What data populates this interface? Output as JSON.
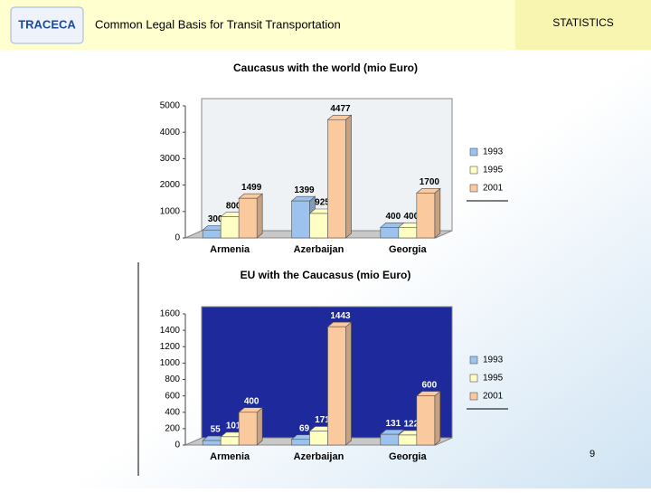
{
  "header": {
    "logo": "TRACECA",
    "title": "Common Legal Basis for Transit Transportation",
    "section": "STATISTICS"
  },
  "page_number": "9",
  "chart_data": [
    {
      "type": "bar",
      "title": "Caucasus with the world (mio Euro)",
      "categories": [
        "Armenia",
        "Azerbaijan",
        "Georgia"
      ],
      "series": [
        {
          "name": "1993",
          "color": "#9cc3ee",
          "values": [
            300,
            1399,
            400
          ]
        },
        {
          "name": "1995",
          "color": "#ffffc4",
          "values": [
            800,
            925,
            400
          ]
        },
        {
          "name": "2001",
          "color": "#fbc99e",
          "values": [
            1499,
            4477,
            1700
          ]
        }
      ],
      "ylim": [
        0,
        5000
      ],
      "yticks": [
        0,
        1000,
        2000,
        3000,
        4000,
        5000
      ],
      "legend": "right"
    },
    {
      "type": "bar",
      "title": "EU with the Caucasus (mio Euro)",
      "categories": [
        "Armenia",
        "Azerbaijan",
        "Georgia"
      ],
      "series": [
        {
          "name": "1993",
          "color": "#9cc3ee",
          "values": [
            55,
            69,
            131
          ]
        },
        {
          "name": "1995",
          "color": "#ffffc4",
          "values": [
            101,
            171,
            122
          ]
        },
        {
          "name": "2001",
          "color": "#fbc99e",
          "values": [
            400,
            1443,
            600
          ]
        }
      ],
      "ylim": [
        0,
        1600
      ],
      "yticks": [
        0,
        200,
        400,
        600,
        800,
        1000,
        1200,
        1400,
        1600
      ],
      "legend": "right"
    }
  ]
}
